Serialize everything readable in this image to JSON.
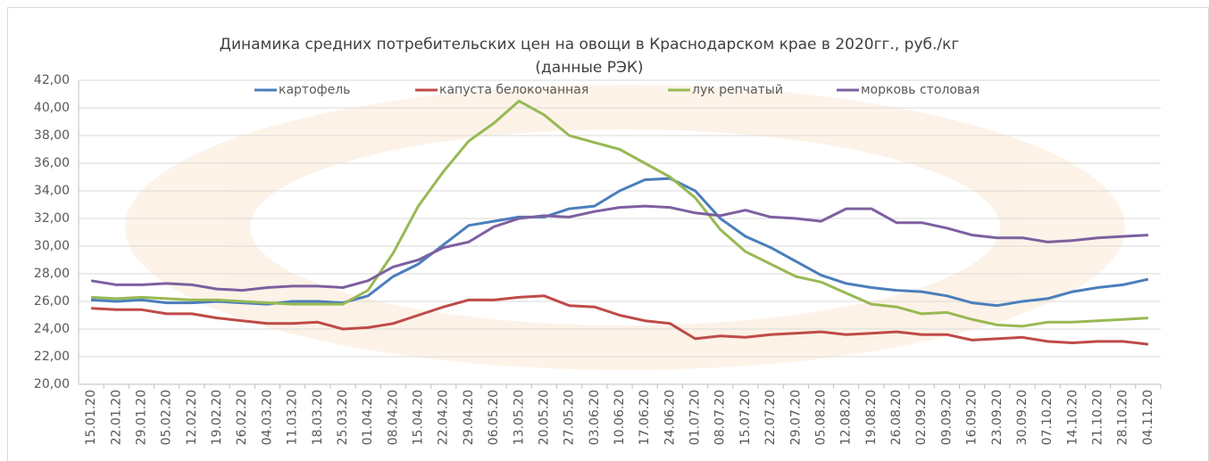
{
  "chart_data": {
    "type": "line",
    "title": "Динамика средних потребительских цен на овощи в Краснодарском крае в 2020гг., руб./кг",
    "subtitle": "(данные РЭК)",
    "categories": [
      "15.01.20",
      "22.01.20",
      "29.01.20",
      "05.02.20",
      "12.02.20",
      "19.02.20",
      "26.02.20",
      "04.03.20",
      "11.03.20",
      "18.03.20",
      "25.03.20",
      "01.04.20",
      "08.04.20",
      "15.04.20",
      "22.04.20",
      "29.04.20",
      "06.05.20",
      "13.05.20",
      "20.05.20",
      "27.05.20",
      "03.06.20",
      "10.06.20",
      "17.06.20",
      "24.06.20",
      "01.07.20",
      "08.07.20",
      "15.07.20",
      "22.07.20",
      "29.07.20",
      "05.08.20",
      "12.08.20",
      "19.08.20",
      "26.08.20",
      "02.09.20",
      "09.09.20",
      "16.09.20",
      "23.09.20",
      "30.09.20",
      "07.10.20",
      "14.10.20",
      "21.10.20",
      "28.10.20",
      "04.11.20"
    ],
    "series": [
      {
        "name": "картофель",
        "color": "#4a7ebb",
        "values": [
          26.1,
          26.0,
          26.1,
          25.9,
          25.9,
          26.0,
          25.9,
          25.8,
          26.0,
          26.0,
          25.9,
          26.4,
          27.8,
          28.7,
          30.1,
          31.5,
          31.8,
          32.1,
          32.1,
          32.7,
          32.9,
          34.0,
          34.8,
          34.9,
          34.0,
          32.0,
          30.7,
          29.9,
          28.9,
          27.9,
          27.3,
          27.0,
          26.8,
          26.7,
          26.4,
          25.9,
          25.7,
          26.0,
          26.2,
          26.7,
          27.0,
          27.2,
          27.6
        ]
      },
      {
        "name": "капуста белокочанная",
        "color": "#be4b48",
        "values": [
          25.5,
          25.4,
          25.4,
          25.1,
          25.1,
          24.8,
          24.6,
          24.4,
          24.4,
          24.5,
          24.0,
          24.1,
          24.4,
          25.0,
          25.6,
          26.1,
          26.1,
          26.3,
          26.4,
          25.7,
          25.6,
          25.0,
          24.6,
          24.4,
          23.3,
          23.5,
          23.4,
          23.6,
          23.7,
          23.8,
          23.6,
          23.7,
          23.8,
          23.6,
          23.6,
          23.2,
          23.3,
          23.4,
          23.1,
          23.0,
          23.1,
          23.1,
          22.9
        ]
      },
      {
        "name": "лук репчатый",
        "color": "#98b954",
        "values": [
          26.3,
          26.2,
          26.3,
          26.2,
          26.1,
          26.1,
          26.0,
          25.9,
          25.8,
          25.8,
          25.8,
          26.8,
          29.5,
          32.9,
          35.4,
          37.6,
          38.9,
          40.5,
          39.5,
          38.0,
          37.5,
          37.0,
          36.0,
          35.0,
          33.5,
          31.2,
          29.6,
          28.7,
          27.8,
          27.4,
          26.6,
          25.8,
          25.6,
          25.1,
          25.2,
          24.7,
          24.3,
          24.2,
          24.5,
          24.5,
          24.6,
          24.7,
          24.8
        ]
      },
      {
        "name": "морковь столовая",
        "color": "#7d60a0",
        "values": [
          27.5,
          27.2,
          27.2,
          27.3,
          27.2,
          26.9,
          26.8,
          27.0,
          27.1,
          27.1,
          27.0,
          27.5,
          28.5,
          29.0,
          29.9,
          30.3,
          31.4,
          32.0,
          32.2,
          32.1,
          32.5,
          32.8,
          32.9,
          32.8,
          32.4,
          32.2,
          32.6,
          32.1,
          32.0,
          31.8,
          32.7,
          32.7,
          31.7,
          31.7,
          31.3,
          30.8,
          30.6,
          30.6,
          30.3,
          30.4,
          30.6,
          30.7,
          30.8
        ]
      }
    ],
    "ylim": [
      20,
      42
    ],
    "yticks": [
      {
        "value": 20,
        "label": "20,00"
      },
      {
        "value": 22,
        "label": "22,00"
      },
      {
        "value": 24,
        "label": "24,00"
      },
      {
        "value": 26,
        "label": "26,00"
      },
      {
        "value": 28,
        "label": "28,00"
      },
      {
        "value": 30,
        "label": "30,00"
      },
      {
        "value": 32,
        "label": "32,00"
      },
      {
        "value": 34,
        "label": "34,00"
      },
      {
        "value": 36,
        "label": "36,00"
      },
      {
        "value": 38,
        "label": "38,00"
      },
      {
        "value": 40,
        "label": "40,00"
      },
      {
        "value": 42,
        "label": "42,00"
      }
    ],
    "grid": true,
    "legend": "top"
  }
}
